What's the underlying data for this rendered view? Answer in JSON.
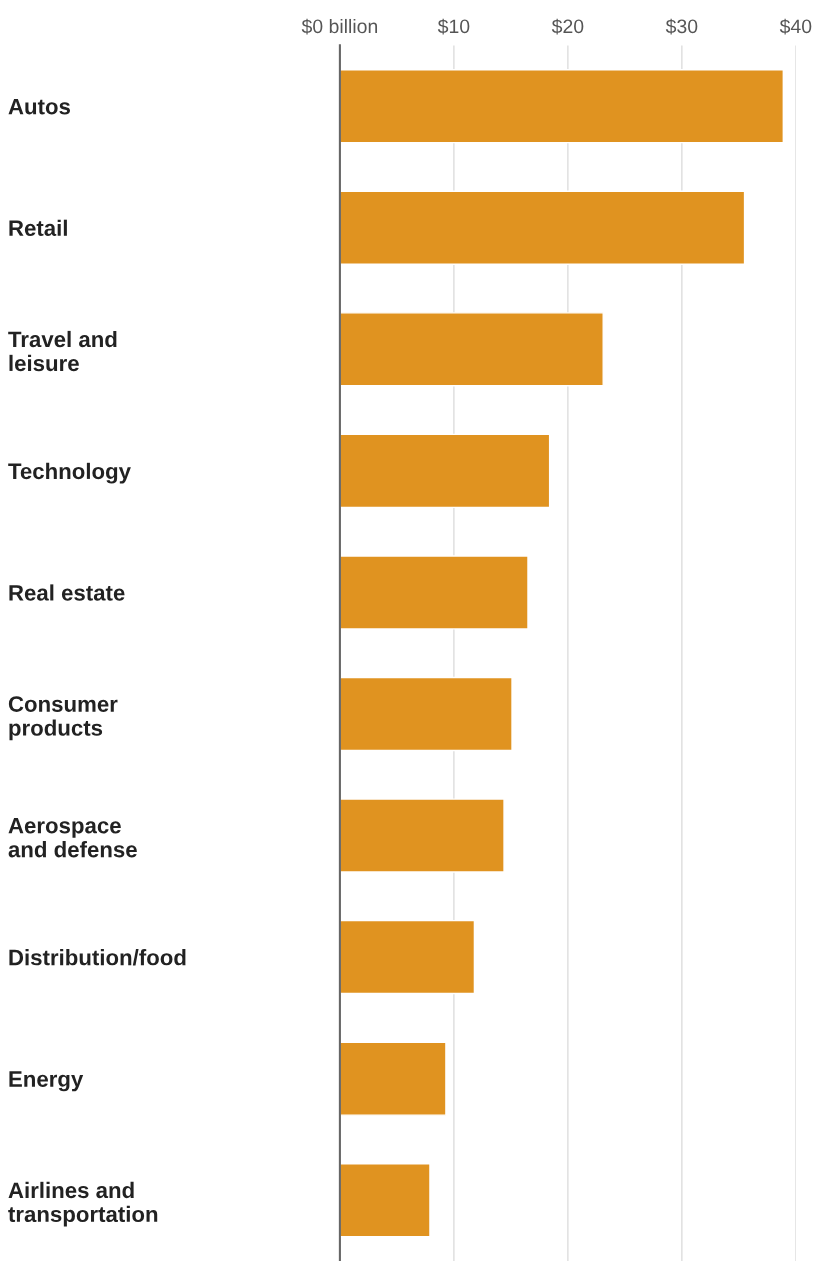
{
  "chart_data": {
    "type": "bar",
    "orientation": "horizontal",
    "categories": [
      "Autos",
      "Retail",
      "Travel and\nleisure",
      "Technology",
      "Real estate",
      "Consumer\nproducts",
      "Aerospace\nand defense",
      "Distribution/food",
      "Energy",
      "Airlines and\ntransportation"
    ],
    "values": [
      38.9,
      35.5,
      23.1,
      18.4,
      16.5,
      15.1,
      14.4,
      11.8,
      9.3,
      7.9
    ],
    "color": "#e09320",
    "xlim": [
      0,
      40
    ],
    "xticks": [
      {
        "value": 0,
        "label": "$0 billion"
      },
      {
        "value": 10,
        "label": "$10"
      },
      {
        "value": 20,
        "label": "$20"
      },
      {
        "value": 30,
        "label": "$30"
      },
      {
        "value": 40,
        "label": "$40"
      }
    ],
    "grid": "x"
  }
}
